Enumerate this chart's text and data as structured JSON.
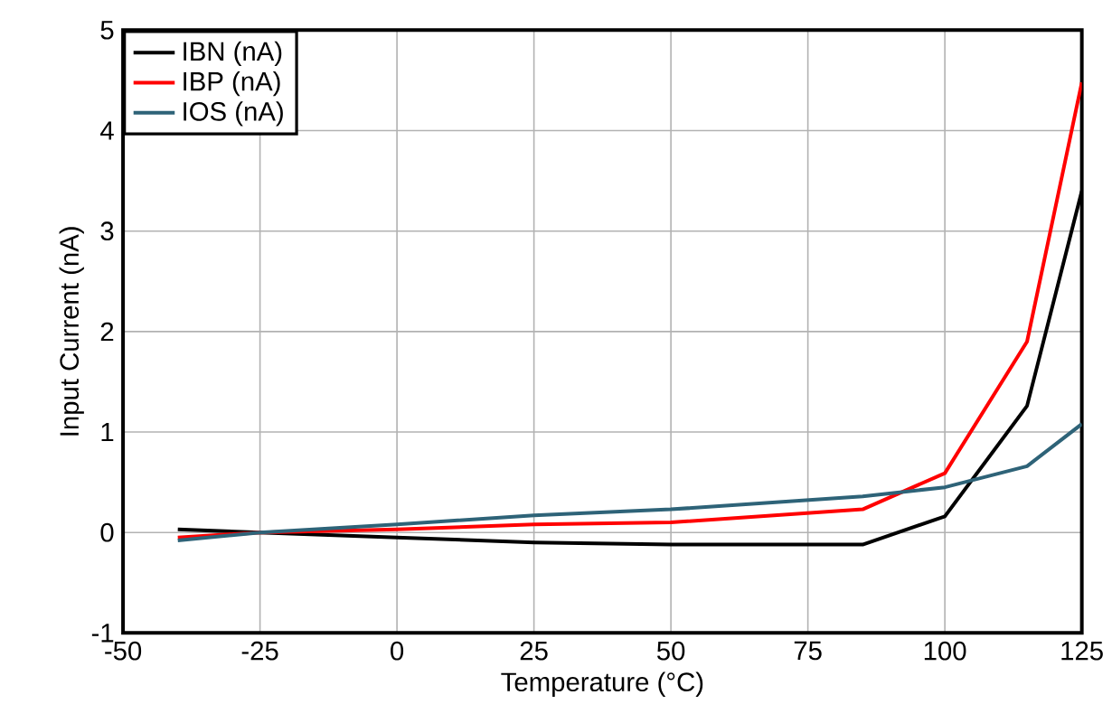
{
  "chart_data": {
    "type": "line",
    "xlabel": "Temperature (°C)",
    "ylabel": "Input Current (nA)",
    "x": [
      -40,
      -25,
      0,
      25,
      50,
      85,
      100,
      115,
      125
    ],
    "series": [
      {
        "name": "IBN (nA)",
        "color": "#000000",
        "values": [
          0.03,
          0,
          -0.05,
          -0.1,
          -0.12,
          -0.12,
          0.16,
          1.26,
          3.4
        ]
      },
      {
        "name": "IBP (nA)",
        "color": "#ff0000",
        "values": [
          -0.05,
          0,
          0.03,
          0.08,
          0.1,
          0.23,
          0.59,
          1.9,
          4.48
        ]
      },
      {
        "name": "IOS (nA)",
        "color": "#2e6378",
        "values": [
          -0.08,
          0,
          0.08,
          0.17,
          0.23,
          0.36,
          0.45,
          0.66,
          1.08
        ]
      }
    ],
    "xlim": [
      -50,
      125
    ],
    "xticks": [
      -50,
      -25,
      0,
      25,
      50,
      75,
      100,
      125
    ],
    "ylim": [
      -1,
      5
    ],
    "yticks": [
      -1,
      0,
      1,
      2,
      3,
      4,
      5
    ],
    "grid": true,
    "legend": "top left",
    "marker": "none",
    "line_style": "solid"
  }
}
